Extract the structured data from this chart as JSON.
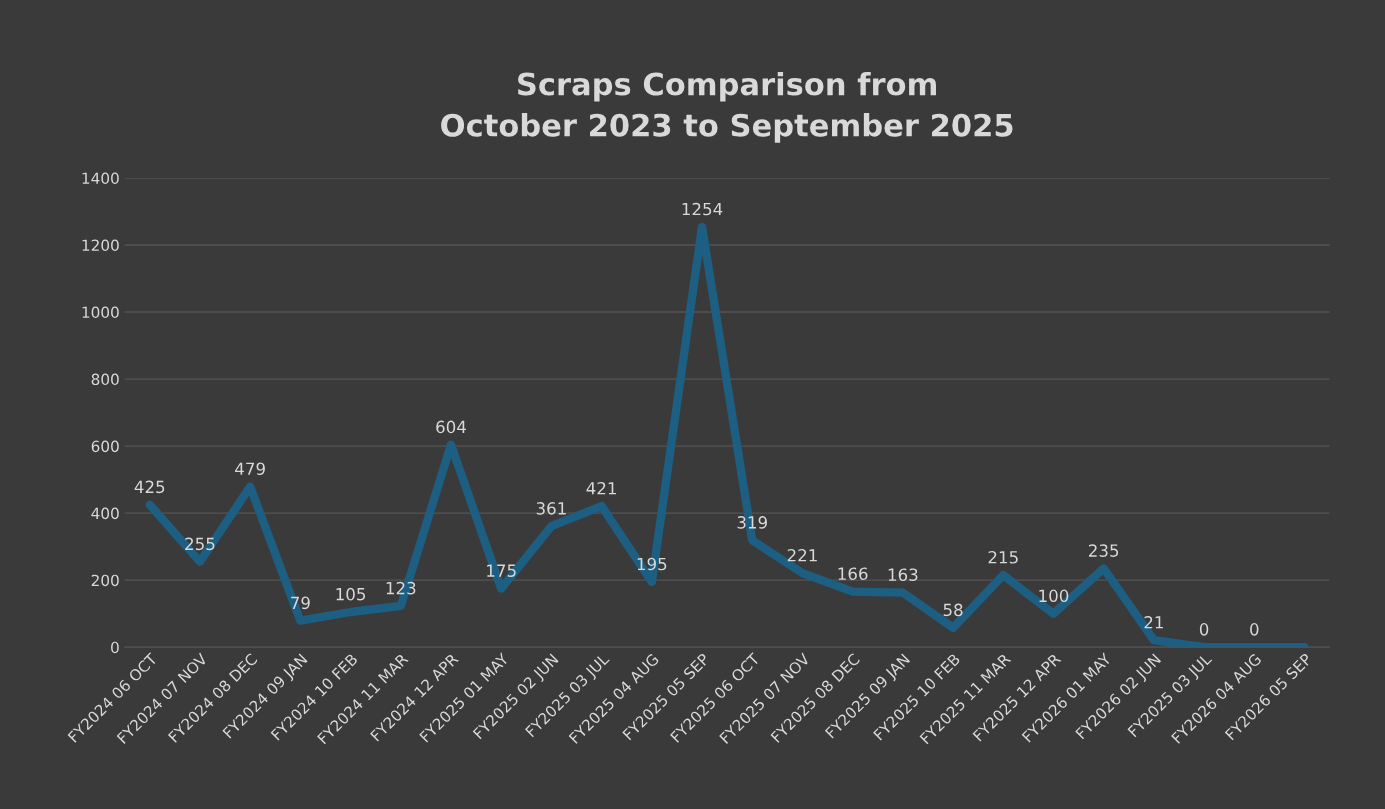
{
  "chart_data": {
    "type": "line",
    "title": "Scraps Comparison from\nOctober 2023 to September 2025",
    "categories": [
      "FY2024 06 OCT",
      "FY2024 07 NOV",
      "FY2024 08 DEC",
      "FY2024 09 JAN",
      "FY2024 10 FEB",
      "FY2024 11 MAR",
      "FY2024 12 APR",
      "FY2025 01 MAY",
      "FY2025 02 JUN",
      "FY2025 03 JUL",
      "FY2025 04 AUG",
      "FY2025 05 SEP",
      "FY2025 06 OCT",
      "FY2025 07 NOV",
      "FY2025 08 DEC",
      "FY2025 09 JAN",
      "FY2025 10 FEB",
      "FY2025 11 MAR",
      "FY2025 12 APR",
      "FY2026 01 MAY",
      "FY2026 02 JUN",
      "FY2025 03 JUL",
      "FY2026 04 AUG",
      "FY2026 05 SEP"
    ],
    "series": [
      {
        "color": "#1d5f82",
        "values": [
          425,
          255,
          479,
          79,
          105,
          123,
          604,
          175,
          361,
          421,
          195,
          1254,
          319,
          221,
          166,
          163,
          58,
          215,
          100,
          235,
          21,
          0,
          0,
          0
        ],
        "value_labels": [
          "425",
          "255",
          "479",
          "79",
          "105",
          "123",
          "604",
          "175",
          "361",
          "421",
          "195",
          "1254",
          "319",
          "221",
          "166",
          "163",
          "58",
          "215",
          "100",
          "235",
          "21",
          "0",
          "0",
          null
        ]
      }
    ],
    "ylim": [
      0,
      1400
    ],
    "yticks": [
      0,
      200,
      400,
      600,
      800,
      1000,
      1200,
      1400
    ],
    "grid": "y",
    "marker": "none",
    "line_style": "solid"
  }
}
